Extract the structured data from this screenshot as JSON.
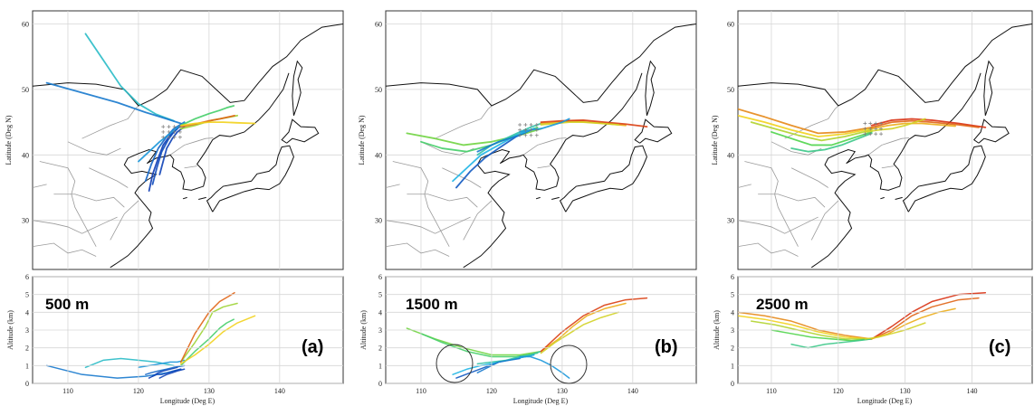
{
  "colors": {
    "low": "#0a1ea8",
    "mid_low": "#1fb5e6",
    "mid": "#4fd44a",
    "mid_high": "#f2d21c",
    "high": "#d41a10",
    "coast": "#111111",
    "grid": "#d6d6d6"
  },
  "chart_data": [
    {
      "type": "line",
      "panel_label": "(a)",
      "height_label": "500 m",
      "map": {
        "xlim": [
          105,
          149
        ],
        "ylim": [
          22.5,
          62
        ],
        "ylabel": "Latitude (Deg N)",
        "yticks": [
          "30",
          "40",
          "50",
          "60"
        ],
        "yticks_values": [
          30,
          40,
          50,
          60
        ]
      },
      "profile": {
        "xlim": [
          105,
          149
        ],
        "ylim": [
          0,
          6
        ],
        "xlabel": "Longitude (Deg E)",
        "ylabel": "Altitude (km)",
        "xticks": [
          "110",
          "120",
          "130",
          "140"
        ],
        "xticks_values": [
          110,
          120,
          130,
          140
        ],
        "yticks": [
          "0",
          "1",
          "2",
          "3",
          "4",
          "5",
          "6"
        ],
        "yticks_values": [
          0,
          1,
          2,
          3,
          4,
          5,
          6
        ]
      },
      "trajectories": [
        {
          "lon": [
            112.5,
            115,
            117.5,
            120,
            122.5,
            125
          ],
          "lat": [
            58.5,
            54.5,
            50.5,
            47.8,
            46.2,
            45.2
          ],
          "alt": [
            0.9,
            1.3,
            1.4,
            1.3,
            1.2,
            1.0
          ],
          "level": 0.3
        },
        {
          "lon": [
            107,
            112,
            117,
            121,
            124,
            126
          ],
          "lat": [
            51,
            49.5,
            48,
            46.5,
            45.5,
            44.8
          ],
          "alt": [
            1.0,
            0.5,
            0.3,
            0.4,
            0.6,
            0.8
          ],
          "level": 0.15
        },
        {
          "lon": [
            121.5,
            122,
            122.8,
            123.5,
            124.5,
            125.5
          ],
          "lat": [
            34.5,
            37,
            39.5,
            41.5,
            43,
            44
          ],
          "alt": [
            0.3,
            0.4,
            0.6,
            0.7,
            0.8,
            0.9
          ],
          "level": 0.05
        },
        {
          "lon": [
            122,
            122.6,
            123.3,
            124.2,
            125,
            126
          ],
          "lat": [
            35.5,
            38,
            40.5,
            42.3,
            43.5,
            44.5
          ],
          "alt": [
            0.4,
            0.5,
            0.5,
            0.6,
            0.7,
            0.8
          ],
          "level": 0.08
        },
        {
          "lon": [
            121,
            121.8,
            122.8,
            124,
            125,
            126.5
          ],
          "lat": [
            36,
            38.5,
            41,
            42.8,
            44,
            45
          ],
          "alt": [
            0.5,
            0.6,
            0.7,
            0.8,
            0.9,
            1.0
          ],
          "level": 0.12
        },
        {
          "lon": [
            123,
            123.5,
            124,
            124.8,
            125.5,
            126.5
          ],
          "lat": [
            37,
            39,
            41,
            42.5,
            43.5,
            44.3
          ],
          "alt": [
            0.3,
            0.4,
            0.5,
            0.6,
            0.7,
            0.8
          ],
          "level": 0.06
        },
        {
          "lon": [
            120,
            121.5,
            123,
            124.5,
            125.5,
            126.5
          ],
          "lat": [
            39,
            40.5,
            42,
            43.3,
            44.2,
            44.9
          ],
          "alt": [
            0.9,
            1.0,
            1.1,
            1.2,
            1.2,
            1.3
          ],
          "level": 0.2
        },
        {
          "lon": [
            126,
            128,
            130,
            131.5,
            132.5,
            133.5
          ],
          "lat": [
            44.5,
            45.5,
            46.3,
            46.8,
            47.2,
            47.5
          ],
          "alt": [
            1.0,
            1.8,
            2.5,
            3.1,
            3.4,
            3.6
          ],
          "level": 0.45
        },
        {
          "lon": [
            126,
            128,
            129.5,
            130.5,
            132,
            134
          ],
          "lat": [
            44,
            44.5,
            45,
            45.3,
            45.6,
            46
          ],
          "alt": [
            1.2,
            2.3,
            3.2,
            4.0,
            4.3,
            4.5
          ],
          "level": 0.62
        },
        {
          "lon": [
            126,
            128,
            130,
            131.5,
            132.8,
            133.6
          ],
          "lat": [
            44.3,
            44.7,
            45.2,
            45.5,
            45.8,
            46.0
          ],
          "alt": [
            1.2,
            2.8,
            4.0,
            4.6,
            4.9,
            5.1
          ],
          "level": 0.9
        },
        {
          "lon": [
            126,
            128,
            130,
            132,
            134,
            136.5
          ],
          "lat": [
            44.5,
            44.8,
            45.0,
            45.0,
            44.9,
            44.8
          ],
          "alt": [
            1.1,
            1.6,
            2.2,
            2.9,
            3.4,
            3.8
          ],
          "level": 0.75
        }
      ]
    },
    {
      "type": "line",
      "panel_label": "(b)",
      "height_label": "1500 m",
      "map": {
        "xlim": [
          105,
          149
        ],
        "ylim": [
          22.5,
          62
        ],
        "ylabel": "Latitude (Deg N)",
        "yticks": [
          "30",
          "40",
          "50",
          "60"
        ],
        "yticks_values": [
          30,
          40,
          50,
          60
        ]
      },
      "profile": {
        "xlim": [
          105,
          149
        ],
        "ylim": [
          0,
          6
        ],
        "xlabel": "Longitude (Deg E)",
        "ylabel": "Altitude (km)",
        "xticks": [
          "110",
          "120",
          "130",
          "140"
        ],
        "xticks_values": [
          110,
          120,
          130,
          140
        ],
        "yticks": [
          "0",
          "1",
          "2",
          "3",
          "4",
          "5",
          "6"
        ],
        "yticks_values": [
          0,
          1,
          2,
          3,
          4,
          5,
          6
        ]
      },
      "trajectories": [
        {
          "lon": [
            108,
            112,
            116,
            120,
            124,
            127
          ],
          "lat": [
            43.3,
            42.5,
            41.5,
            42.0,
            43.0,
            44.0
          ],
          "alt": [
            3.1,
            2.5,
            2.0,
            1.6,
            1.6,
            1.8
          ],
          "level": 0.55
        },
        {
          "lon": [
            110,
            113,
            116.5,
            120,
            123.5,
            126.5
          ],
          "lat": [
            42,
            41,
            40.5,
            41.5,
            43,
            44.2
          ],
          "alt": [
            2.8,
            2.3,
            1.8,
            1.5,
            1.5,
            1.7
          ],
          "level": 0.45
        },
        {
          "lon": [
            115,
            117,
            119,
            121,
            123.5,
            126
          ],
          "lat": [
            35,
            37.5,
            39.5,
            41,
            42.8,
            44
          ],
          "alt": [
            0.3,
            0.6,
            0.9,
            1.2,
            1.4,
            1.6
          ],
          "level": 0.1
        },
        {
          "lon": [
            114.5,
            116.5,
            118.5,
            121,
            123.5,
            126
          ],
          "lat": [
            36,
            38,
            40,
            41.5,
            43,
            44
          ],
          "alt": [
            0.5,
            0.8,
            1.0,
            1.2,
            1.4,
            1.6
          ],
          "level": 0.25
        },
        {
          "lon": [
            118,
            120,
            122,
            124,
            125.5,
            127
          ],
          "lat": [
            40,
            41.5,
            42.5,
            43.5,
            44.2,
            44.8
          ],
          "alt": [
            1.1,
            1.2,
            1.3,
            1.5,
            1.6,
            1.8
          ],
          "level": 0.35
        },
        {
          "lon": [
            127,
            129.5,
            131.5,
            133.5,
            136,
            139
          ],
          "lat": [
            44.8,
            45,
            45.2,
            45,
            44.8,
            44.5
          ],
          "alt": [
            1.8,
            2.5,
            3.2,
            3.8,
            4.2,
            4.5
          ],
          "level": 0.8
        },
        {
          "lon": [
            127,
            130,
            133,
            136,
            139,
            142
          ],
          "lat": [
            45,
            45.2,
            45.3,
            45,
            44.7,
            44.3
          ],
          "alt": [
            1.8,
            2.9,
            3.8,
            4.4,
            4.7,
            4.8
          ],
          "level": 0.95
        },
        {
          "lon": [
            127,
            129,
            131,
            133,
            135.5,
            138
          ],
          "lat": [
            44.6,
            44.8,
            45,
            45,
            44.8,
            44.6
          ],
          "alt": [
            1.7,
            2.3,
            2.8,
            3.3,
            3.7,
            4.0
          ],
          "level": 0.7
        },
        {
          "lon": [
            124,
            125.5,
            127,
            128.5,
            130,
            131
          ],
          "lat": [
            43.5,
            43.8,
            44,
            44.5,
            45,
            45.5
          ],
          "alt": [
            1.5,
            1.5,
            1.3,
            1.0,
            0.6,
            0.3
          ],
          "level": 0.2
        },
        {
          "lon": [
            118,
            119,
            120,
            121,
            122.5,
            124
          ],
          "lat": [
            40.5,
            41,
            41.5,
            42,
            42.5,
            43
          ],
          "alt": [
            0.6,
            0.8,
            1.0,
            1.2,
            1.3,
            1.4
          ],
          "level": 0.15
        }
      ]
    },
    {
      "type": "line",
      "panel_label": "(c)",
      "height_label": "2500 m",
      "map": {
        "xlim": [
          105,
          149
        ],
        "ylim": [
          22.5,
          62
        ],
        "ylabel": "Latitude (Deg N)",
        "yticks": [
          "30",
          "40",
          "50",
          "60"
        ],
        "yticks_values": [
          30,
          40,
          50,
          60
        ]
      },
      "profile": {
        "xlim": [
          105,
          149
        ],
        "ylim": [
          0,
          6
        ],
        "xlabel": "Longitude (Deg E)",
        "ylabel": "Altitude (km)",
        "xticks": [
          "110",
          "120",
          "130",
          "140"
        ],
        "xticks_values": [
          110,
          120,
          130,
          140
        ],
        "yticks": [
          "0",
          "1",
          "2",
          "3",
          "4",
          "5",
          "6"
        ],
        "yticks_values": [
          0,
          1,
          2,
          3,
          4,
          5,
          6
        ]
      },
      "trajectories": [
        {
          "lon": [
            105,
            109,
            113,
            117,
            121,
            125
          ],
          "lat": [
            47,
            45.8,
            44.5,
            43.3,
            43.5,
            44.2
          ],
          "alt": [
            4.0,
            3.8,
            3.5,
            3.0,
            2.7,
            2.5
          ],
          "level": 0.85
        },
        {
          "lon": [
            105,
            109,
            113,
            117,
            121,
            125
          ],
          "lat": [
            46,
            45,
            43.8,
            42.8,
            43.2,
            44
          ],
          "alt": [
            3.8,
            3.6,
            3.3,
            2.9,
            2.6,
            2.5
          ],
          "level": 0.75
        },
        {
          "lon": [
            107,
            110.5,
            114,
            117.5,
            121,
            125
          ],
          "lat": [
            45,
            44,
            43,
            42.2,
            42.8,
            43.8
          ],
          "alt": [
            3.5,
            3.3,
            3.0,
            2.7,
            2.5,
            2.5
          ],
          "level": 0.65
        },
        {
          "lon": [
            110,
            113,
            116,
            119,
            122,
            125
          ],
          "lat": [
            43.5,
            42.5,
            41.5,
            41.5,
            42.5,
            43.5
          ],
          "alt": [
            3.0,
            2.8,
            2.6,
            2.5,
            2.4,
            2.5
          ],
          "level": 0.5
        },
        {
          "lon": [
            113,
            115.5,
            118,
            120.5,
            123,
            125
          ],
          "lat": [
            41,
            40.5,
            40.8,
            41.5,
            42.5,
            43.3
          ],
          "alt": [
            2.2,
            2.0,
            2.2,
            2.3,
            2.4,
            2.5
          ],
          "level": 0.4
        },
        {
          "lon": [
            125,
            128,
            131,
            134,
            138,
            142
          ],
          "lat": [
            44.5,
            45.3,
            45.5,
            45.3,
            44.8,
            44.2
          ],
          "alt": [
            2.5,
            3.2,
            4.0,
            4.6,
            5.0,
            5.1
          ],
          "level": 0.97
        },
        {
          "lon": [
            125,
            128,
            131,
            134,
            138,
            141
          ],
          "lat": [
            44.2,
            45,
            45.2,
            45,
            44.6,
            44.2
          ],
          "alt": [
            2.5,
            3.0,
            3.8,
            4.3,
            4.7,
            4.8
          ],
          "level": 0.9
        },
        {
          "lon": [
            125,
            127.5,
            130,
            132.5,
            135,
            137.5
          ],
          "lat": [
            44,
            44.5,
            44.8,
            44.8,
            44.6,
            44.4
          ],
          "alt": [
            2.5,
            2.8,
            3.3,
            3.7,
            4.0,
            4.2
          ],
          "level": 0.8
        },
        {
          "lon": [
            124,
            126,
            128,
            130,
            131.5,
            133
          ],
          "lat": [
            43.5,
            43.8,
            44,
            44.5,
            45,
            45.5
          ],
          "alt": [
            2.5,
            2.6,
            2.8,
            3.0,
            3.2,
            3.4
          ],
          "level": 0.7
        }
      ]
    }
  ]
}
